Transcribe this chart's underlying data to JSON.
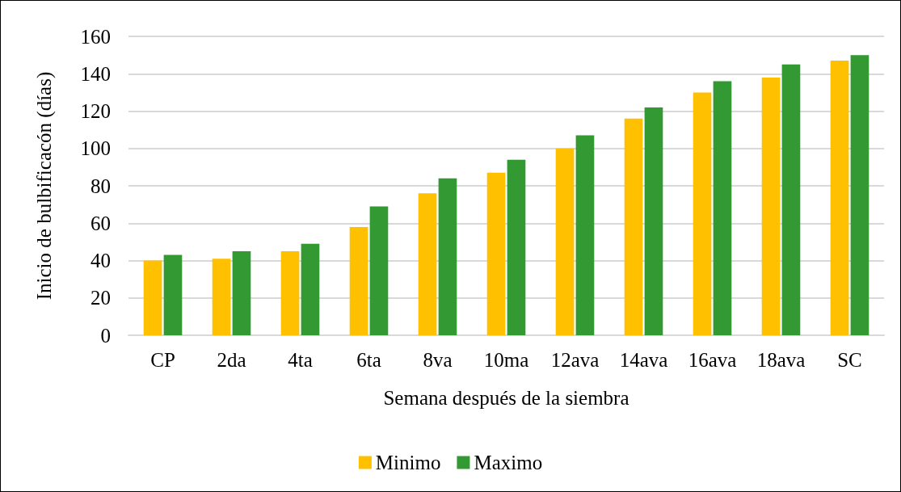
{
  "chart_data": {
    "type": "bar",
    "xlabel": "Semana después de la siembra",
    "ylabel": "Inicio de bulbificacón (días)",
    "categories": [
      "CP",
      "2da",
      "4ta",
      "6ta",
      "8va",
      "10ma",
      "12ava",
      "14ava",
      "16ava",
      "18ava",
      "SC"
    ],
    "series": [
      {
        "name": "Minimo",
        "color": "#ffc000",
        "values": [
          40,
          41,
          45,
          58,
          76,
          87,
          100,
          116,
          130,
          138,
          147
        ]
      },
      {
        "name": "Maximo",
        "color": "#339933",
        "values": [
          43,
          45,
          49,
          69,
          84,
          94,
          107,
          122,
          136,
          145,
          150
        ]
      }
    ],
    "ylim": [
      0,
      160
    ],
    "yticks": [
      0,
      20,
      40,
      60,
      80,
      100,
      120,
      140,
      160
    ],
    "grid": "y",
    "legend": "bottom"
  }
}
